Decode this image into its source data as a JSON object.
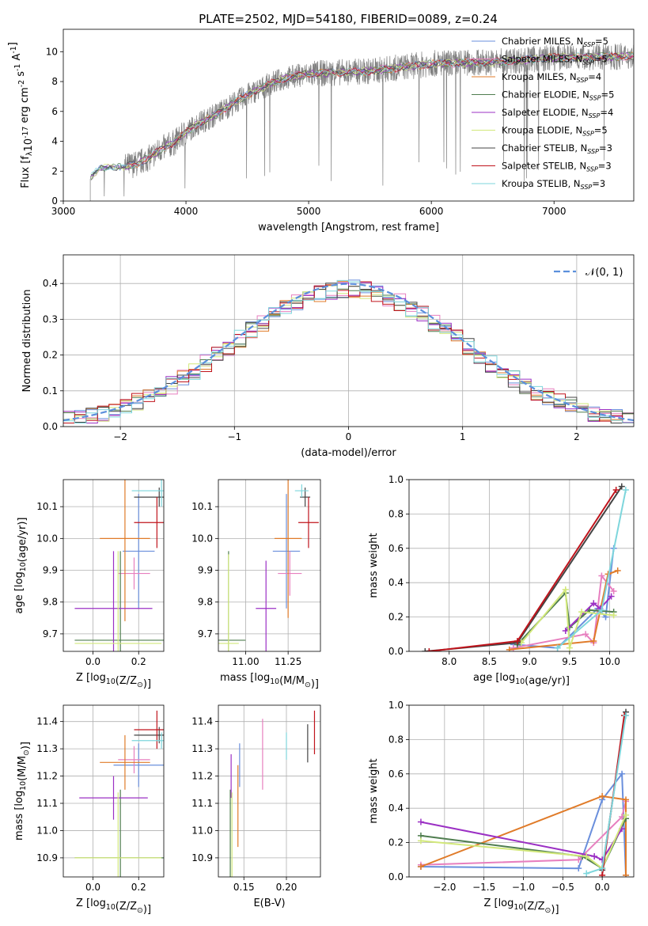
{
  "figure_title": "PLATE=2502, MJD=54180, FIBERID=0089, z=0.24",
  "colors": {
    "Chabrier MILES": "#6a8fdc",
    "Salpeter MILES": "#e77fbf",
    "Kroupa MILES": "#e07b29",
    "Chabrier ELODIE": "#4f7d4f",
    "Salpeter ELODIE": "#9b30c4",
    "Kroupa ELODIE": "#d2e87a",
    "Chabrier STELIB": "#444444",
    "Salpeter STELIB": "#c0141c",
    "Kroupa STELIB": "#7ed6dc",
    "data": "#808080",
    "normal": "#5b8fdc",
    "grid": "#b0b0b0"
  },
  "chart_data": [
    {
      "id": "spectrum",
      "type": "line",
      "xlabel": "wavelength [Angstrom, rest frame]",
      "ylabel": "Flux [f$_\\lambda$10$^{-17}$ erg cm$^{-2}$ s$^{-1}$ A$^{-1}$]",
      "xlim": [
        3000,
        7650
      ],
      "ylim": [
        0,
        11.5
      ],
      "xticks": [
        3000,
        4000,
        5000,
        6000,
        7000
      ],
      "yticks": [
        0,
        2,
        4,
        6,
        8,
        10
      ],
      "grid": false,
      "legend_position": "top-right",
      "data_range": [
        3220,
        7650
      ],
      "continuum": [
        [
          3220,
          1.6
        ],
        [
          3300,
          2.2
        ],
        [
          3500,
          2.3
        ],
        [
          3600,
          2.5
        ],
        [
          3700,
          2.9
        ],
        [
          3800,
          3.5
        ],
        [
          3900,
          3.9
        ],
        [
          4000,
          4.6
        ],
        [
          4100,
          5.2
        ],
        [
          4200,
          5.6
        ],
        [
          4300,
          6.1
        ],
        [
          4400,
          6.6
        ],
        [
          4500,
          7.1
        ],
        [
          4600,
          7.5
        ],
        [
          4700,
          7.9
        ],
        [
          4800,
          8.2
        ],
        [
          4900,
          8.4
        ],
        [
          5000,
          8.5
        ],
        [
          5200,
          8.6
        ],
        [
          5500,
          8.7
        ],
        [
          6000,
          9.2
        ],
        [
          6500,
          9.3
        ],
        [
          7000,
          9.6
        ],
        [
          7650,
          9.7
        ]
      ],
      "legend": [
        {
          "model": "Chabrier MILES",
          "nssp": 5
        },
        {
          "model": "Salpeter MILES",
          "nssp": 5
        },
        {
          "model": "Kroupa MILES",
          "nssp": 4
        },
        {
          "model": "Chabrier ELODIE",
          "nssp": 5
        },
        {
          "model": "Salpeter ELODIE",
          "nssp": 4
        },
        {
          "model": "Kroupa ELODIE",
          "nssp": 5
        },
        {
          "model": "Chabrier STELIB",
          "nssp": 3
        },
        {
          "model": "Salpeter STELIB",
          "nssp": 3
        },
        {
          "model": "Kroupa STELIB",
          "nssp": 3
        }
      ]
    },
    {
      "id": "residuals",
      "type": "histogram",
      "xlabel": "(data-model)/error",
      "ylabel": "Normed distribution",
      "xlim": [
        -2.5,
        2.5
      ],
      "ylim": [
        0,
        0.48
      ],
      "xticks": [
        -2,
        -1,
        0,
        1,
        2
      ],
      "yticks": [
        0.0,
        0.1,
        0.2,
        0.3,
        0.4
      ],
      "grid": true,
      "bin_width": 0.1,
      "legend_position": "top-right",
      "legend_label": "𝒩(0, 1)"
    },
    {
      "id": "age_vs_Z",
      "type": "errorbar",
      "xlabel": "Z [log$_{10}$(Z/Z$_\\odot$)]",
      "ylabel": "age  [log$_{10}$(age/yr)]",
      "xlim": [
        -0.13,
        0.31
      ],
      "ylim": [
        9.645,
        10.185
      ],
      "xticks": [
        0.0,
        0.2
      ],
      "yticks": [
        9.7,
        9.8,
        9.9,
        10.0,
        10.1
      ],
      "grid": true,
      "points": [
        {
          "model": "Chabrier MILES",
          "x": 0.2,
          "xerr": 0.07,
          "y": 9.96,
          "yerr": 0.18
        },
        {
          "model": "Salpeter MILES",
          "x": 0.18,
          "xerr": 0.07,
          "y": 9.89,
          "yerr": 0.05
        },
        {
          "model": "Kroupa MILES",
          "x": 0.14,
          "xerr": 0.11,
          "y": 10.0,
          "yerr": 0.26
        },
        {
          "model": "Chabrier ELODIE",
          "x": 0.12,
          "xerr": 0.2,
          "y": 9.68,
          "yerr": 0.28
        },
        {
          "model": "Salpeter ELODIE",
          "x": 0.09,
          "xerr": 0.17,
          "y": 9.78,
          "yerr": 0.18
        },
        {
          "model": "Kroupa ELODIE",
          "x": 0.11,
          "xerr": 0.19,
          "y": 9.67,
          "yerr": 0.29
        },
        {
          "model": "Chabrier STELIB",
          "x": 0.29,
          "xerr": 0.11,
          "y": 10.13,
          "yerr": 0.03
        },
        {
          "model": "Salpeter STELIB",
          "x": 0.28,
          "xerr": 0.1,
          "y": 10.05,
          "yerr": 0.08
        },
        {
          "model": "Kroupa STELIB",
          "x": 0.3,
          "xerr": 0.13,
          "y": 10.15,
          "yerr": 0.05
        }
      ]
    },
    {
      "id": "age_vs_mass",
      "type": "errorbar",
      "xlabel": "mass [log$_{10}$(M/M$_\\odot$)]",
      "ylabel": "",
      "xlim": [
        10.84,
        11.44
      ],
      "ylim": [
        9.645,
        10.185
      ],
      "xticks": [
        11.0,
        11.25
      ],
      "yticks": [
        9.7,
        9.8,
        9.9,
        10.0,
        10.1
      ],
      "grid": true,
      "points": [
        {
          "model": "Chabrier MILES",
          "x": 11.24,
          "xerr": 0.08,
          "y": 9.96,
          "yerr": 0.18
        },
        {
          "model": "Salpeter MILES",
          "x": 11.26,
          "xerr": 0.07,
          "y": 9.89,
          "yerr": 0.07
        },
        {
          "model": "Kroupa MILES",
          "x": 11.25,
          "xerr": 0.08,
          "y": 10.0,
          "yerr": 0.25
        },
        {
          "model": "Chabrier ELODIE",
          "x": 10.9,
          "xerr": 0.1,
          "y": 9.68,
          "yerr": 0.28
        },
        {
          "model": "Salpeter ELODIE",
          "x": 11.12,
          "xerr": 0.06,
          "y": 9.78,
          "yerr": 0.15
        },
        {
          "model": "Kroupa ELODIE",
          "x": 10.9,
          "xerr": 0.06,
          "y": 9.67,
          "yerr": 0.28
        },
        {
          "model": "Chabrier STELIB",
          "x": 11.35,
          "xerr": 0.03,
          "y": 10.13,
          "yerr": 0.03
        },
        {
          "model": "Salpeter STELIB",
          "x": 11.37,
          "xerr": 0.06,
          "y": 10.05,
          "yerr": 0.08
        },
        {
          "model": "Kroupa STELIB",
          "x": 11.33,
          "xerr": 0.04,
          "y": 10.15,
          "yerr": 0.02
        }
      ]
    },
    {
      "id": "weight_vs_age",
      "type": "line",
      "xlabel": "age  [log$_{10}$(age/yr)]",
      "ylabel": "mass weight",
      "xlim": [
        7.5,
        10.3
      ],
      "ylim": [
        0,
        1.0
      ],
      "xticks": [
        8.0,
        8.5,
        9.0,
        9.5,
        10.0
      ],
      "yticks": [
        0.0,
        0.2,
        0.4,
        0.6,
        0.8,
        1.0
      ],
      "grid": true,
      "series": [
        {
          "model": "Chabrier MILES",
          "x": [
            8.8,
            9.35,
            9.85,
            9.95,
            10.05
          ],
          "y": [
            0.04,
            0.02,
            0.25,
            0.2,
            0.6
          ]
        },
        {
          "model": "Salpeter MILES",
          "x": [
            8.8,
            9.7,
            9.8,
            9.9,
            10.05
          ],
          "y": [
            0.02,
            0.1,
            0.05,
            0.44,
            0.35
          ]
        },
        {
          "model": "Kroupa MILES",
          "x": [
            8.75,
            9.8,
            9.98,
            10.1
          ],
          "y": [
            0.01,
            0.06,
            0.45,
            0.47
          ]
        },
        {
          "model": "Chabrier ELODIE",
          "x": [
            8.85,
            9.45,
            9.5,
            9.75,
            10.05
          ],
          "y": [
            0.04,
            0.34,
            0.14,
            0.24,
            0.23
          ]
        },
        {
          "model": "Salpeter ELODIE",
          "x": [
            9.45,
            9.8,
            9.88,
            10.02
          ],
          "y": [
            0.12,
            0.28,
            0.25,
            0.32
          ]
        },
        {
          "model": "Kroupa ELODIE",
          "x": [
            8.9,
            9.45,
            9.5,
            9.65,
            10.05
          ],
          "y": [
            0.05,
            0.36,
            0.02,
            0.23,
            0.21
          ]
        },
        {
          "model": "Chabrier STELIB",
          "x": [
            7.7,
            8.85,
            10.15
          ],
          "y": [
            0.0,
            0.05,
            0.96
          ]
        },
        {
          "model": "Salpeter STELIB",
          "x": [
            7.75,
            8.85,
            10.08
          ],
          "y": [
            0.0,
            0.06,
            0.94
          ]
        },
        {
          "model": "Kroupa STELIB",
          "x": [
            9.35,
            9.9,
            10.2
          ],
          "y": [
            0.02,
            0.24,
            0.94
          ]
        }
      ]
    },
    {
      "id": "mass_vs_Z",
      "type": "errorbar",
      "xlabel": "Z [log$_{10}$(Z/Z$_\\odot$)]",
      "ylabel": "mass [log$_{10}$(M/M$_\\odot$)]",
      "xlim": [
        -0.13,
        0.31
      ],
      "ylim": [
        10.83,
        11.46
      ],
      "xticks": [
        0.0,
        0.2
      ],
      "yticks": [
        10.9,
        11.0,
        11.1,
        11.2,
        11.3,
        11.4
      ],
      "grid": true,
      "points": [
        {
          "model": "Chabrier MILES",
          "x": 0.2,
          "xerr": 0.11,
          "y": 11.24,
          "yerr": 0.08
        },
        {
          "model": "Salpeter MILES",
          "x": 0.18,
          "xerr": 0.07,
          "y": 11.26,
          "yerr": 0.05
        },
        {
          "model": "Kroupa MILES",
          "x": 0.14,
          "xerr": 0.11,
          "y": 11.25,
          "yerr": 0.1
        },
        {
          "model": "Chabrier ELODIE",
          "x": 0.12,
          "xerr": 0.2,
          "y": 10.9,
          "yerr": 0.25
        },
        {
          "model": "Salpeter ELODIE",
          "x": 0.09,
          "xerr": 0.15,
          "y": 11.12,
          "yerr": 0.08
        },
        {
          "model": "Kroupa ELODIE",
          "x": 0.11,
          "xerr": 0.19,
          "y": 10.9,
          "yerr": 0.24
        },
        {
          "model": "Chabrier STELIB",
          "x": 0.29,
          "xerr": 0.11,
          "y": 11.35,
          "yerr": 0.03
        },
        {
          "model": "Salpeter STELIB",
          "x": 0.28,
          "xerr": 0.1,
          "y": 11.37,
          "yerr": 0.07
        },
        {
          "model": "Kroupa STELIB",
          "x": 0.3,
          "xerr": 0.13,
          "y": 11.33,
          "yerr": 0.03
        }
      ]
    },
    {
      "id": "mass_vs_EBV",
      "type": "errorbar",
      "xlabel": "E(B-V)",
      "ylabel": "",
      "xlim": [
        0.12,
        0.24
      ],
      "ylim": [
        10.83,
        11.46
      ],
      "xticks": [
        0.15,
        0.2
      ],
      "yticks": [
        10.9,
        11.0,
        11.1,
        11.2,
        11.3,
        11.4
      ],
      "grid": true,
      "points": [
        {
          "model": "Chabrier MILES",
          "x": 0.145,
          "xerr": 0,
          "y": 11.24,
          "yerr": 0.08
        },
        {
          "model": "Salpeter MILES",
          "x": 0.172,
          "xerr": 0,
          "y": 11.28,
          "yerr": 0.13
        },
        {
          "model": "Kroupa MILES",
          "x": 0.143,
          "xerr": 0,
          "y": 11.09,
          "yerr": 0.15
        },
        {
          "model": "Chabrier ELODIE",
          "x": 0.134,
          "xerr": 0,
          "y": 10.9,
          "yerr": 0.25
        },
        {
          "model": "Salpeter ELODIE",
          "x": 0.135,
          "xerr": 0,
          "y": 11.2,
          "yerr": 0.08
        },
        {
          "model": "Kroupa ELODIE",
          "x": 0.136,
          "xerr": 0,
          "y": 10.9,
          "yerr": 0.24
        },
        {
          "model": "Chabrier STELIB",
          "x": 0.225,
          "xerr": 0,
          "y": 11.32,
          "yerr": 0.07
        },
        {
          "model": "Salpeter STELIB",
          "x": 0.233,
          "xerr": 0,
          "y": 11.36,
          "yerr": 0.08
        },
        {
          "model": "Kroupa STELIB",
          "x": 0.2,
          "xerr": 0,
          "y": 11.31,
          "yerr": 0.05
        }
      ]
    },
    {
      "id": "weight_vs_Z",
      "type": "line",
      "xlabel": "Z [log$_{10}$(Z/Z$_\\odot$)]",
      "ylabel": "mass weight",
      "xlim": [
        -2.45,
        0.4
      ],
      "ylim": [
        0,
        1.0
      ],
      "xticks": [
        -2.0,
        -1.5,
        -1.0,
        -0.5,
        0.0
      ],
      "yticks": [
        0.0,
        0.2,
        0.4,
        0.6,
        0.8,
        1.0
      ],
      "grid": true,
      "series": [
        {
          "model": "Chabrier MILES",
          "x": [
            -2.3,
            -0.3,
            0.0,
            0.25,
            0.3
          ],
          "y": [
            0.06,
            0.05,
            0.45,
            0.6,
            0.01
          ]
        },
        {
          "model": "Salpeter MILES",
          "x": [
            -2.3,
            -0.3,
            0.25,
            0.3
          ],
          "y": [
            0.07,
            0.1,
            0.35,
            0.44
          ]
        },
        {
          "model": "Kroupa MILES",
          "x": [
            -2.3,
            0.0,
            0.3,
            0.3
          ],
          "y": [
            0.06,
            0.47,
            0.45,
            0.01
          ]
        },
        {
          "model": "Chabrier ELODIE",
          "x": [
            -2.3,
            -0.25,
            0.0,
            0.3
          ],
          "y": [
            0.24,
            0.12,
            0.05,
            0.34
          ]
        },
        {
          "model": "Salpeter ELODIE",
          "x": [
            -2.3,
            -0.1,
            0.0,
            0.25
          ],
          "y": [
            0.32,
            0.12,
            0.1,
            0.28
          ]
        },
        {
          "model": "Kroupa ELODIE",
          "x": [
            -2.3,
            -0.2,
            0.0,
            0.3
          ],
          "y": [
            0.21,
            0.12,
            0.05,
            0.36
          ]
        },
        {
          "model": "Chabrier STELIB",
          "x": [
            0.0,
            0.3
          ],
          "y": [
            0.04,
            0.96
          ]
        },
        {
          "model": "Salpeter STELIB",
          "x": [
            0.0,
            0.28
          ],
          "y": [
            0.01,
            0.94
          ]
        },
        {
          "model": "Kroupa STELIB",
          "x": [
            -0.2,
            0.0,
            0.3
          ],
          "y": [
            0.02,
            0.05,
            0.94
          ]
        }
      ]
    }
  ]
}
